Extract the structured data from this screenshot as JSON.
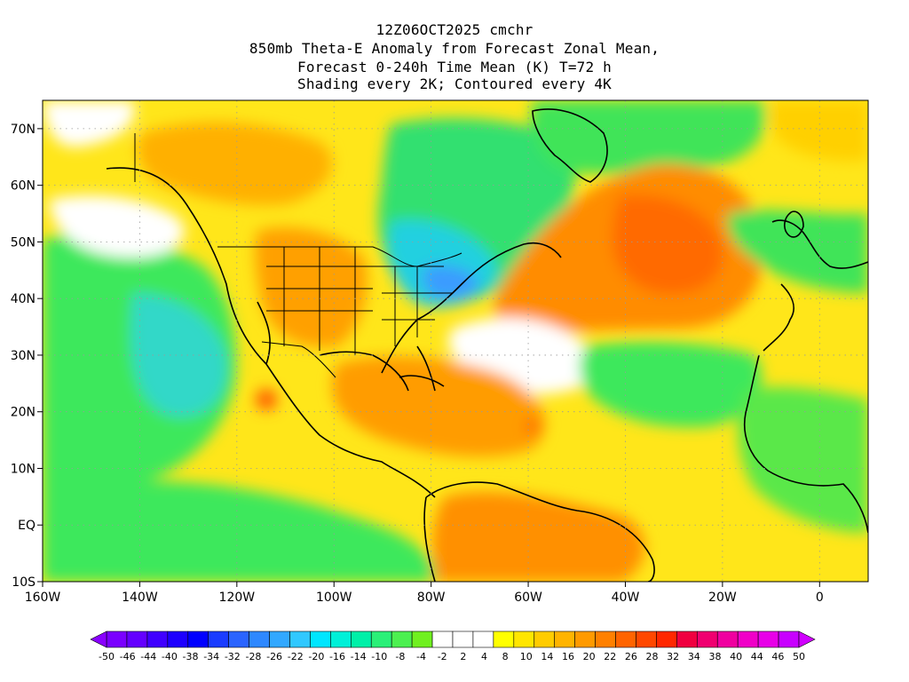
{
  "title": {
    "line1": "12Z06OCT2025 cmchr",
    "line2": "850mb Theta-E Anomaly from Forecast Zonal Mean,",
    "line3": "Forecast 0-240h Time Mean (K) T=72 h",
    "line4": "Shading every 2K; Contoured every 4K"
  },
  "map": {
    "projection": "lat-lon",
    "lon_range": [
      -160,
      10
    ],
    "lat_range": [
      -10,
      75
    ],
    "x_ticks": [
      "160W",
      "140W",
      "120W",
      "100W",
      "80W",
      "60W",
      "40W",
      "20W",
      "0"
    ],
    "y_ticks": [
      "10S",
      "EQ",
      "10N",
      "20N",
      "30N",
      "40N",
      "50N",
      "60N",
      "70N"
    ],
    "grid": "dotted"
  },
  "colorbar": {
    "labels": [
      "-50",
      "-46",
      "-44",
      "-40",
      "-38",
      "-34",
      "-32",
      "-28",
      "-26",
      "-22",
      "-20",
      "-16",
      "-14",
      "-10",
      "-8",
      "-4",
      "-2",
      "2",
      "4",
      "8",
      "10",
      "14",
      "16",
      "20",
      "22",
      "26",
      "28",
      "32",
      "34",
      "38",
      "40",
      "44",
      "46",
      "50"
    ],
    "colors": [
      "#7a00ff",
      "#6400ff",
      "#4000ff",
      "#1e00ff",
      "#0000ff",
      "#1a3cff",
      "#2a64ff",
      "#2e88ff",
      "#32a8ff",
      "#30c8ff",
      "#00e6ff",
      "#00f0d8",
      "#00f0a8",
      "#2af078",
      "#4cf050",
      "#70f020",
      "#ffffff",
      "#ffffff",
      "#ffffff",
      "#ffff00",
      "#ffe600",
      "#ffcc00",
      "#ffb400",
      "#ff9a00",
      "#ff8000",
      "#ff6400",
      "#ff4800",
      "#ff2800",
      "#f00040",
      "#f00070",
      "#f000a0",
      "#f000c8",
      "#e800e8",
      "#c800ff"
    ]
  }
}
